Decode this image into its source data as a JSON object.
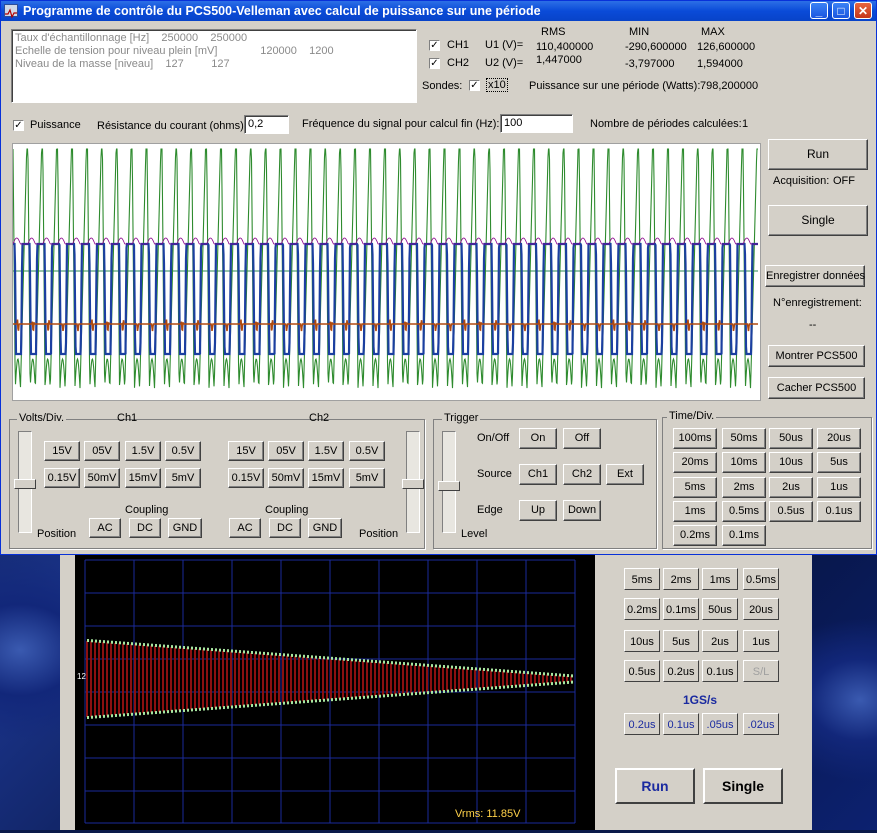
{
  "window": {
    "title": "Programme de contrôle du PCS500-Velleman avec calcul de puissance sur une période"
  },
  "info_box": {
    "lines": [
      {
        "label": "Taux d'échantillonnage [Hz]",
        "v1": "250000",
        "v2": "250000"
      },
      {
        "label": "Echelle de tension pour niveau plein [mV]",
        "v1": "120000",
        "v2": "1200"
      },
      {
        "label": "Niveau de la masse [niveau]",
        "v1": "127",
        "v2": "127"
      }
    ]
  },
  "measurements": {
    "headers": {
      "rms": "RMS",
      "min": "MIN",
      "max": "MAX"
    },
    "ch1": {
      "label": "CH1",
      "name": "U1 (V)=",
      "rms": "110,400000",
      "min": "-290,600000",
      "max": "126,600000"
    },
    "ch2": {
      "label": "CH2",
      "name": "U2 (V)=",
      "rms": "1,447000",
      "min": "-3,797000",
      "max": "1,594000"
    },
    "probes_label": "Sondes:",
    "probe_x10": "x10",
    "power_label": "Puissance sur une période (Watts):",
    "power_value": "798,200000"
  },
  "power_row": {
    "checkbox_label": "Puissance",
    "resistance_label": "Résistance du courant (ohms):",
    "resistance_value": "0,2",
    "freq_label": "Fréquence du signal pour calcul fin (Hz):",
    "freq_value": "100",
    "periods_label": "Nombre de périodes calculées:",
    "periods_value": "1"
  },
  "right_panel": {
    "run": "Run",
    "acquisition_label": "Acquisition:",
    "acquisition_value": "OFF",
    "single": "Single",
    "save": "Enregistrer données",
    "record_label": "N°enregistrement:",
    "record_value": "--",
    "show": "Montrer PCS500",
    "hide": "Cacher PCS500"
  },
  "volts_div": {
    "title": "Volts/Div.",
    "ch1": "Ch1",
    "ch2": "Ch2",
    "row1": [
      "15V",
      "05V",
      "1.5V",
      "0.5V"
    ],
    "row2": [
      "0.15V",
      "50mV",
      "15mV",
      "5mV"
    ],
    "coupling": "Coupling",
    "coupling_buttons": [
      "AC",
      "DC",
      "GND"
    ],
    "position": "Position"
  },
  "trigger": {
    "title": "Trigger",
    "onoff_label": "On/Off",
    "on": "On",
    "off": "Off",
    "source_label": "Source",
    "sources": [
      "Ch1",
      "Ch2",
      "Ext"
    ],
    "edge_label": "Edge",
    "up": "Up",
    "down": "Down",
    "level": "Level"
  },
  "time_div": {
    "title": "Time/Div.",
    "buttons": [
      "100ms",
      "50ms",
      "50us",
      "20us",
      "20ms",
      "10ms",
      "10us",
      "5us",
      "5ms",
      "2ms",
      "2us",
      "1us",
      "1ms",
      "0.5ms",
      "0.5us",
      "0.1us",
      "0.2ms",
      "0.1ms"
    ]
  },
  "background_app": {
    "timebase_buttons": [
      "5ms",
      "2ms",
      "1ms",
      "0.5ms",
      "0.2ms",
      "0.1ms",
      "50us",
      "20us",
      "10us",
      "5us",
      "2us",
      "1us",
      "0.5us",
      "0.2us",
      "0.1us",
      "S/L"
    ],
    "sample_rate": "1GS/s",
    "fast_buttons": [
      "0.2us",
      "0.1us",
      ".05us",
      ".02us"
    ],
    "run": "Run",
    "single": "Single",
    "marker_12": "12",
    "vrms": "Vrms: 11.85V"
  },
  "colors": {
    "ch1_trace": "#2e8b2e",
    "ch2_trace": "#1b3fa0",
    "power_trace": "#b04a10",
    "marker": "#8b008b",
    "title_bar": "#0a4bd8"
  }
}
